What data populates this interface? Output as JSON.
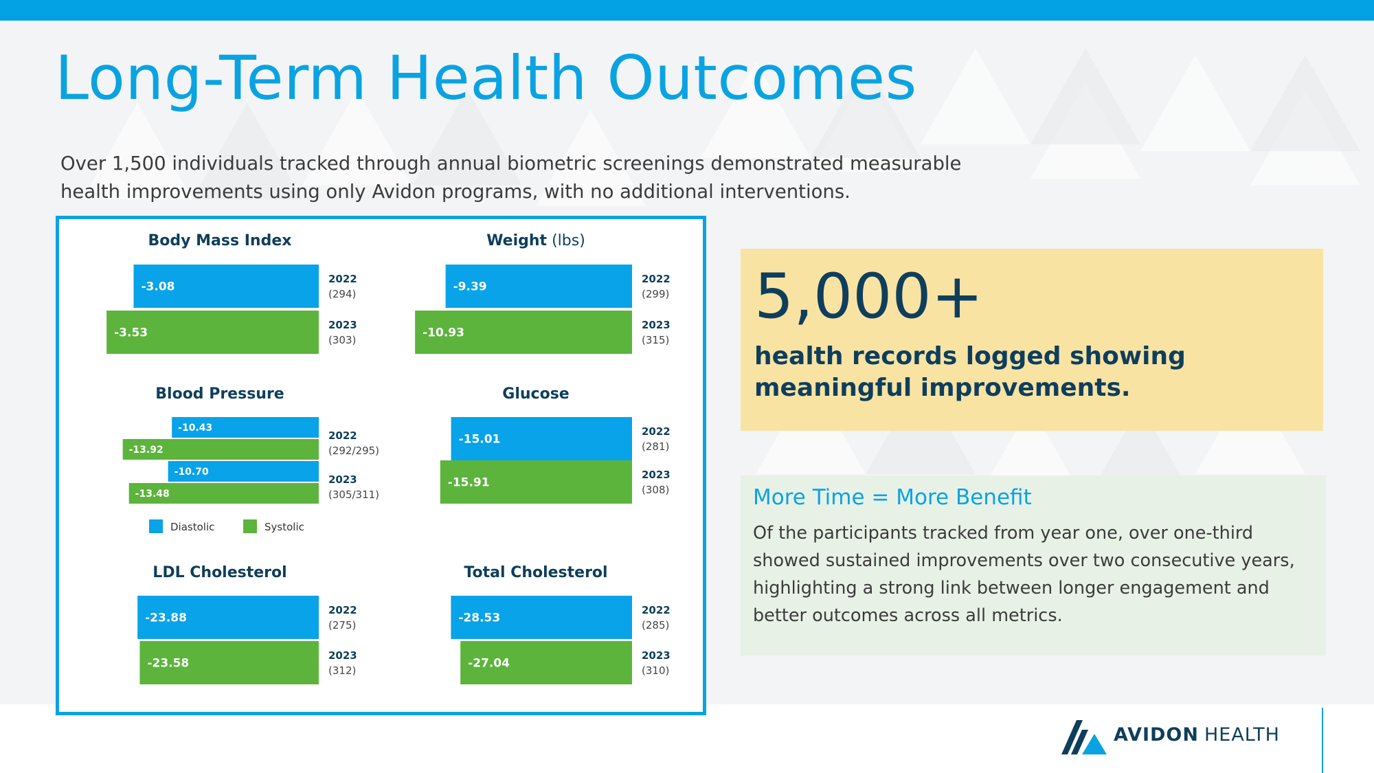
{
  "title": "Long-Term Health Outcomes",
  "subtitle": "Over 1,500 individuals tracked through annual biometric screenings demonstrated measurable health improvements using only Avidon programs, with no additional interventions.",
  "colors": {
    "accent": "#0aa3e2",
    "series_2022": "#08a3e8",
    "series_2023": "#5cb43c",
    "navy": "#0e3e5c",
    "stat_bg": "#f8e3a3",
    "info_bg": "#e8f1e6"
  },
  "stat": {
    "number": "5,000+",
    "text": "health records logged showing meaningful improvements."
  },
  "info": {
    "heading": "More Time = More Benefit",
    "body": "Of the participants tracked from year one, over one-third showed sustained improvements over two consecutive years, highlighting a strong link between longer engagement and better outcomes across all metrics."
  },
  "logo": {
    "brand_bold": "AVIDON",
    "brand_light": "HEALTH",
    "icon": "avidon-mountain-icon"
  },
  "chart_data": [
    {
      "type": "bar",
      "title": "Body Mass Index",
      "title_suffix": "",
      "series": [
        {
          "name": "2022",
          "count": "(294)",
          "values": [
            -3.08
          ],
          "labels": [
            "-3.08"
          ]
        },
        {
          "name": "2023",
          "count": "(303)",
          "values": [
            -3.53
          ],
          "labels": [
            "-3.53"
          ]
        }
      ]
    },
    {
      "type": "bar",
      "title": "Weight",
      "title_suffix": "(lbs)",
      "series": [
        {
          "name": "2022",
          "count": "(299)",
          "values": [
            -9.39
          ],
          "labels": [
            "-9.39"
          ]
        },
        {
          "name": "2023",
          "count": "(315)",
          "values": [
            -10.93
          ],
          "labels": [
            "-10.93"
          ]
        }
      ]
    },
    {
      "type": "bar",
      "title": "Blood Pressure",
      "title_suffix": "",
      "legend": [
        "Diastolic",
        "Systolic"
      ],
      "series": [
        {
          "name": "2022",
          "count": "(292/295)",
          "values": [
            -10.43,
            -13.92
          ],
          "labels": [
            "-10.43",
            "-13.92"
          ]
        },
        {
          "name": "2023",
          "count": "(305/311)",
          "values": [
            -10.7,
            -13.48
          ],
          "labels": [
            "-10.70",
            "-13.48"
          ]
        }
      ]
    },
    {
      "type": "bar",
      "title": "Glucose",
      "title_suffix": "",
      "series": [
        {
          "name": "2022",
          "count": "(281)",
          "values": [
            -15.01
          ],
          "labels": [
            "-15.01"
          ]
        },
        {
          "name": "2023",
          "count": "(308)",
          "values": [
            -15.91
          ],
          "labels": [
            "-15.91"
          ]
        }
      ]
    },
    {
      "type": "bar",
      "title": "LDL Cholesterol",
      "title_suffix": "",
      "series": [
        {
          "name": "2022",
          "count": "(275)",
          "values": [
            -23.88
          ],
          "labels": [
            "-23.88"
          ]
        },
        {
          "name": "2023",
          "count": "(312)",
          "values": [
            -23.58
          ],
          "labels": [
            "-23.58"
          ]
        }
      ]
    },
    {
      "type": "bar",
      "title": "Total Cholesterol",
      "title_suffix": "",
      "series": [
        {
          "name": "2022",
          "count": "(285)",
          "values": [
            -28.53
          ],
          "labels": [
            "-28.53"
          ]
        },
        {
          "name": "2023",
          "count": "(310)",
          "values": [
            -27.04
          ],
          "labels": [
            "-27.04"
          ]
        }
      ]
    }
  ]
}
